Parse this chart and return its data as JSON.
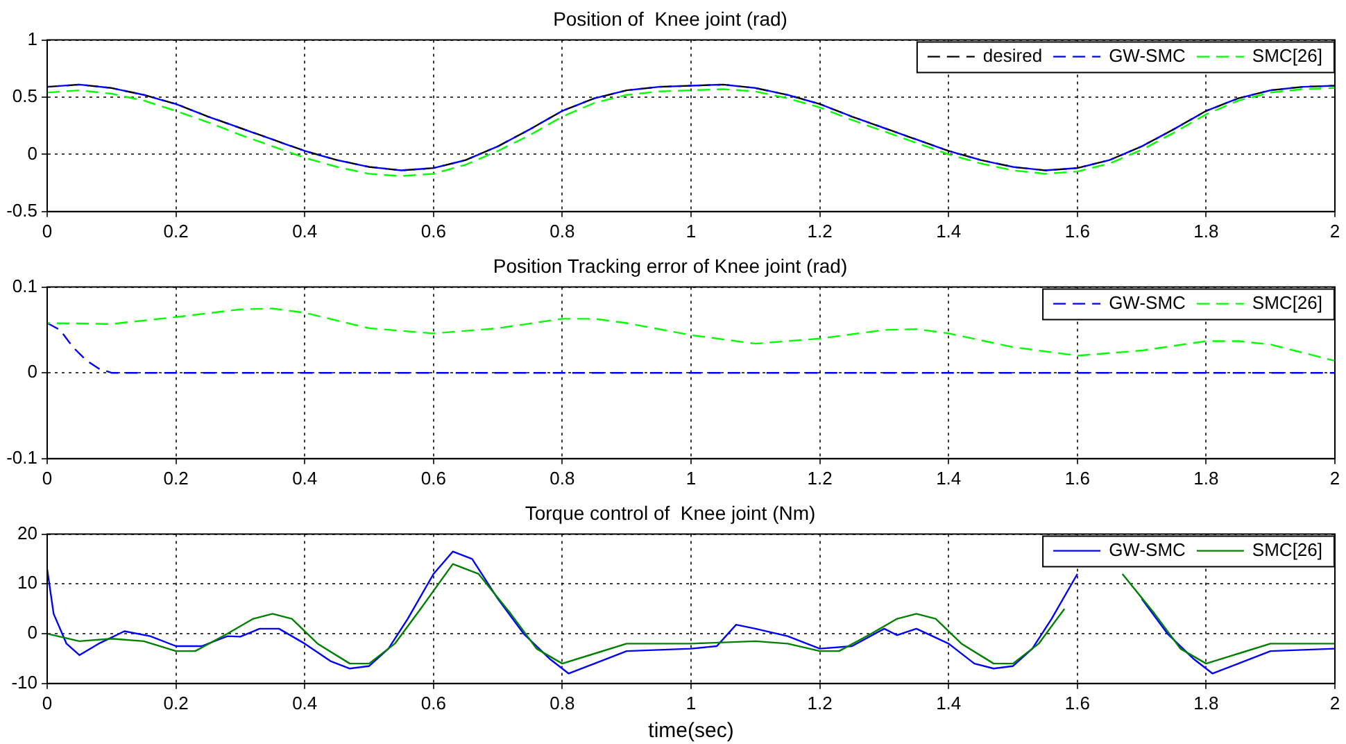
{
  "chart_data": [
    {
      "type": "line",
      "title": "Position of  Knee joint (rad)",
      "xlim": [
        0,
        2
      ],
      "xticks": [
        0,
        0.2,
        0.4,
        0.6,
        0.8,
        1,
        1.2,
        1.4,
        1.6,
        1.8,
        2
      ],
      "ylim": [
        -0.5,
        1
      ],
      "yticks": [
        -0.5,
        0,
        0.5,
        1
      ],
      "grid": true,
      "legend": "top right",
      "line_style": "dashed",
      "series": [
        {
          "name": "desired",
          "color": "#000000",
          "x": [
            0,
            0.05,
            0.1,
            0.15,
            0.2,
            0.25,
            0.3,
            0.35,
            0.4,
            0.45,
            0.5,
            0.55,
            0.6,
            0.65,
            0.7,
            0.75,
            0.8,
            0.85,
            0.9,
            0.95,
            1,
            1.05,
            1.1,
            1.15,
            1.2,
            1.25,
            1.3,
            1.35,
            1.4,
            1.45,
            1.5,
            1.55,
            1.6,
            1.65,
            1.7,
            1.75,
            1.8,
            1.85,
            1.9,
            1.95,
            2
          ],
          "values": [
            0.59,
            0.61,
            0.58,
            0.52,
            0.44,
            0.33,
            0.23,
            0.13,
            0.03,
            -0.05,
            -0.11,
            -0.14,
            -0.12,
            -0.05,
            0.07,
            0.22,
            0.38,
            0.49,
            0.56,
            0.59,
            0.6,
            0.61,
            0.58,
            0.52,
            0.44,
            0.33,
            0.23,
            0.13,
            0.03,
            -0.05,
            -0.11,
            -0.14,
            -0.12,
            -0.05,
            0.07,
            0.22,
            0.38,
            0.49,
            0.56,
            0.59,
            0.6
          ]
        },
        {
          "name": "GW-SMC",
          "color": "#0000ff",
          "x": [
            0,
            0.05,
            0.1,
            0.15,
            0.2,
            0.25,
            0.3,
            0.35,
            0.4,
            0.45,
            0.5,
            0.55,
            0.6,
            0.65,
            0.7,
            0.75,
            0.8,
            0.85,
            0.9,
            0.95,
            1,
            1.05,
            1.1,
            1.15,
            1.2,
            1.25,
            1.3,
            1.35,
            1.4,
            1.45,
            1.5,
            1.55,
            1.6,
            1.65,
            1.7,
            1.75,
            1.8,
            1.85,
            1.9,
            1.95,
            2
          ],
          "values": [
            0.59,
            0.61,
            0.58,
            0.52,
            0.44,
            0.33,
            0.23,
            0.13,
            0.03,
            -0.05,
            -0.11,
            -0.14,
            -0.12,
            -0.05,
            0.07,
            0.22,
            0.38,
            0.49,
            0.56,
            0.59,
            0.6,
            0.61,
            0.58,
            0.52,
            0.44,
            0.33,
            0.23,
            0.13,
            0.03,
            -0.05,
            -0.11,
            -0.14,
            -0.12,
            -0.05,
            0.07,
            0.22,
            0.38,
            0.49,
            0.56,
            0.59,
            0.6
          ]
        },
        {
          "name": "SMC[26]",
          "color": "#00ff00",
          "x": [
            0,
            0.05,
            0.1,
            0.15,
            0.2,
            0.25,
            0.3,
            0.35,
            0.4,
            0.45,
            0.5,
            0.55,
            0.6,
            0.65,
            0.7,
            0.75,
            0.8,
            0.85,
            0.9,
            0.95,
            1,
            1.05,
            1.1,
            1.15,
            1.2,
            1.25,
            1.3,
            1.35,
            1.4,
            1.45,
            1.5,
            1.55,
            1.6,
            1.65,
            1.7,
            1.75,
            1.8,
            1.85,
            1.9,
            1.95,
            2
          ],
          "values": [
            0.54,
            0.56,
            0.53,
            0.47,
            0.38,
            0.28,
            0.17,
            0.07,
            -0.03,
            -0.11,
            -0.17,
            -0.19,
            -0.17,
            -0.09,
            0.03,
            0.17,
            0.33,
            0.45,
            0.52,
            0.55,
            0.56,
            0.57,
            0.55,
            0.49,
            0.41,
            0.3,
            0.2,
            0.1,
            0.0,
            -0.08,
            -0.14,
            -0.17,
            -0.15,
            -0.08,
            0.04,
            0.19,
            0.35,
            0.47,
            0.54,
            0.57,
            0.58
          ]
        }
      ]
    },
    {
      "type": "line",
      "title": "Position Tracking error of Knee joint (rad)",
      "xlim": [
        0,
        2
      ],
      "xticks": [
        0,
        0.2,
        0.4,
        0.6,
        0.8,
        1,
        1.2,
        1.4,
        1.6,
        1.8,
        2
      ],
      "ylim": [
        -0.1,
        0.1
      ],
      "yticks": [
        -0.1,
        0,
        0.1
      ],
      "grid": true,
      "legend": "top right",
      "line_style": "dashed",
      "series": [
        {
          "name": "GW-SMC",
          "color": "#0000ff",
          "x": [
            0,
            0.02,
            0.04,
            0.06,
            0.08,
            0.1,
            0.5,
            1,
            1.5,
            2
          ],
          "values": [
            0.058,
            0.05,
            0.03,
            0.015,
            0.005,
            0,
            0,
            0,
            0,
            0
          ]
        },
        {
          "name": "SMC[26]",
          "color": "#00ff00",
          "x": [
            0,
            0.1,
            0.2,
            0.3,
            0.35,
            0.4,
            0.5,
            0.6,
            0.7,
            0.8,
            0.85,
            0.9,
            1,
            1.1,
            1.2,
            1.3,
            1.35,
            1.4,
            1.5,
            1.6,
            1.7,
            1.8,
            1.85,
            1.9,
            2
          ],
          "values": [
            0.058,
            0.057,
            0.065,
            0.074,
            0.075,
            0.07,
            0.052,
            0.046,
            0.052,
            0.063,
            0.063,
            0.058,
            0.044,
            0.034,
            0.04,
            0.05,
            0.051,
            0.046,
            0.03,
            0.02,
            0.026,
            0.037,
            0.037,
            0.033,
            0.014
          ]
        }
      ]
    },
    {
      "type": "line",
      "title": "Torque control of  Knee joint (Nm)",
      "xlabel": "time(sec)",
      "xlim": [
        0,
        2
      ],
      "xticks": [
        0,
        0.2,
        0.4,
        0.6,
        0.8,
        1,
        1.2,
        1.4,
        1.6,
        1.8,
        2
      ],
      "ylim": [
        -10,
        20
      ],
      "yticks": [
        -10,
        0,
        10,
        20
      ],
      "grid": true,
      "legend": "top right",
      "line_style": "solid",
      "series": [
        {
          "name": "GW-SMC",
          "color": "#0000ff",
          "x": [
            0,
            0.01,
            0.03,
            0.05,
            0.08,
            0.12,
            0.16,
            0.2,
            0.24,
            0.28,
            0.3,
            0.33,
            0.36,
            0.4,
            0.44,
            0.47,
            0.5,
            0.53,
            0.56,
            0.6,
            0.63,
            0.66,
            0.7,
            0.74,
            0.78,
            0.81,
            0.85,
            0.9,
            1,
            1.04,
            1.07,
            1.1,
            1.15,
            1.2,
            1.25,
            1.3,
            1.32,
            1.35,
            1.4,
            1.44,
            1.47,
            1.5,
            1.53,
            1.56,
            1.6,
            1.63,
            1.66,
            1.7,
            1.74,
            1.78,
            1.81,
            1.85,
            1.9,
            2
          ],
          "values": [
            13,
            4,
            -2,
            -4.3,
            -2,
            0.5,
            -0.5,
            -2.5,
            -2.5,
            -0.5,
            -0.6,
            1,
            1,
            -2,
            -5.5,
            -7,
            -6.5,
            -3,
            3,
            12,
            16.5,
            15,
            7,
            0,
            -5,
            -8,
            -6,
            -3.5,
            -3,
            -2.5,
            1.8,
            1,
            -0.5,
            -3,
            -2.5,
            1,
            -0.3,
            1,
            -2,
            -6,
            -7,
            -6.5,
            -3,
            3,
            12,
            null,
            null,
            7,
            0,
            -5,
            -8,
            -6,
            -3.5,
            -3
          ]
        },
        {
          "name": "SMC[26]",
          "color": "#008000",
          "x": [
            0,
            0.05,
            0.1,
            0.15,
            0.2,
            0.23,
            0.28,
            0.32,
            0.35,
            0.38,
            0.42,
            0.47,
            0.5,
            0.54,
            0.58,
            0.63,
            0.67,
            0.72,
            0.76,
            0.8,
            0.85,
            0.9,
            1,
            1.1,
            1.15,
            1.2,
            1.23,
            1.28,
            1.32,
            1.35,
            1.38,
            1.42,
            1.47,
            1.5,
            1.54,
            1.58,
            1.63,
            1.67,
            1.72,
            1.76,
            1.8,
            1.85,
            1.9,
            2
          ],
          "values": [
            0,
            -1.5,
            -1,
            -1.5,
            -3.5,
            -3.5,
            0,
            3,
            4,
            3,
            -2,
            -6,
            -6,
            -2,
            5,
            14,
            12,
            4,
            -3,
            -6,
            -4,
            -2,
            -2,
            -1.5,
            -2,
            -3.5,
            -3.5,
            0,
            3,
            4,
            3,
            -2,
            -6,
            -6,
            -2,
            5,
            null,
            12,
            4,
            -3,
            -6,
            -4,
            -2,
            -2
          ]
        }
      ]
    }
  ]
}
